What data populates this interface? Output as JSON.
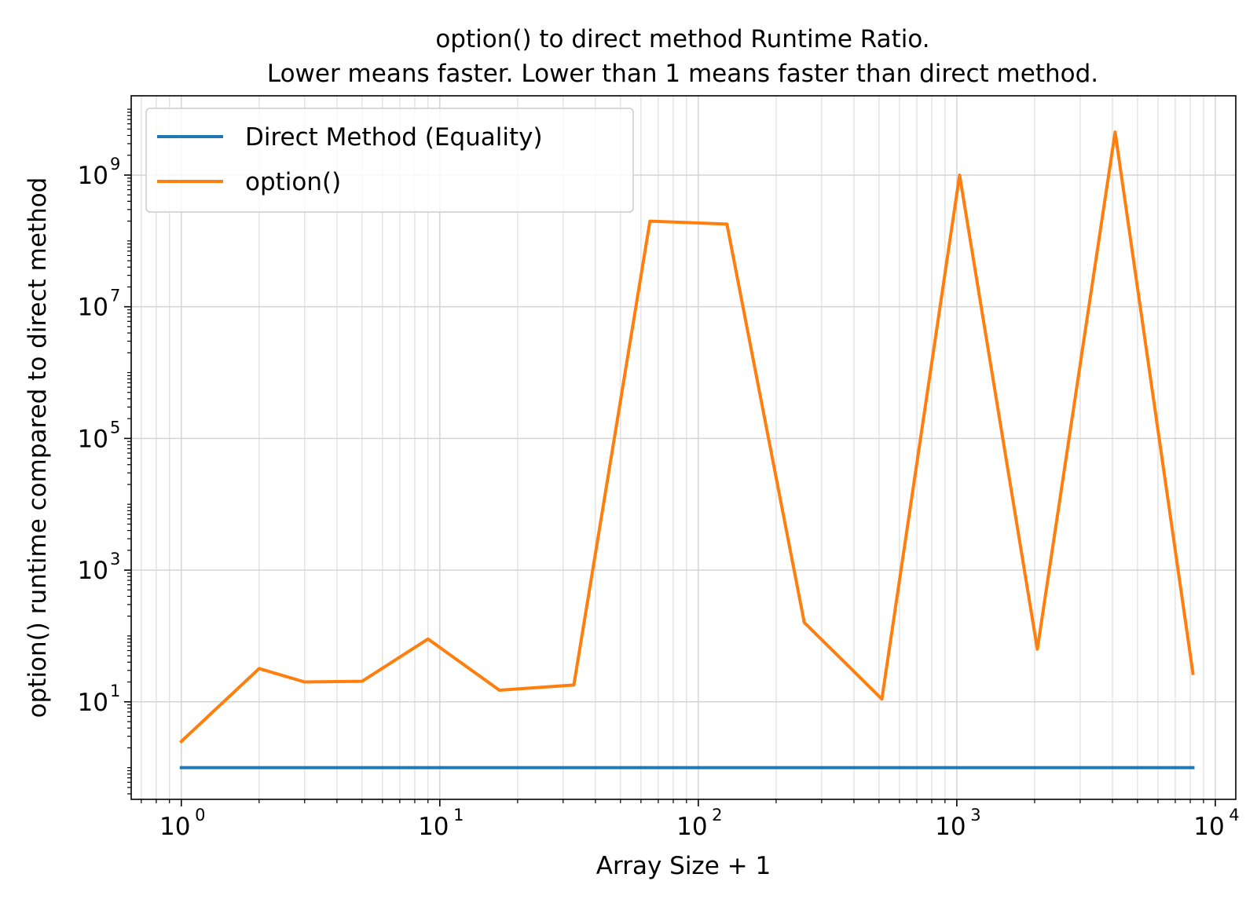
{
  "chart_data": {
    "type": "line",
    "title_line1": "option() to direct method Runtime Ratio.",
    "title_line2": "Lower means faster. Lower than 1 means faster than direct method.",
    "xlabel": "Array Size + 1",
    "ylabel": "option() runtime compared to direct method",
    "xscale": "log",
    "yscale": "log",
    "xlim": [
      0.64,
      12000
    ],
    "ylim": [
      0.33,
      16000000000
    ],
    "grid": "on (major and minor)",
    "legend_position": "upper left",
    "x_major_ticks": [
      1,
      10,
      100,
      1000,
      10000
    ],
    "x_tick_labels": [
      {
        "base": "10",
        "exp": "0"
      },
      {
        "base": "10",
        "exp": "1"
      },
      {
        "base": "10",
        "exp": "2"
      },
      {
        "base": "10",
        "exp": "3"
      },
      {
        "base": "10",
        "exp": "4"
      }
    ],
    "y_major_ticks": [
      10,
      1000,
      100000,
      10000000,
      1000000000
    ],
    "y_tick_labels": [
      {
        "base": "10",
        "exp": "1"
      },
      {
        "base": "10",
        "exp": "3"
      },
      {
        "base": "10",
        "exp": "5"
      },
      {
        "base": "10",
        "exp": "7"
      },
      {
        "base": "10",
        "exp": "9"
      }
    ],
    "x": [
      1,
      2,
      3,
      5,
      9,
      17,
      33,
      65,
      129,
      257,
      513,
      1025,
      2049,
      4097,
      8193
    ],
    "series": [
      {
        "name": "Direct Method (Equality)",
        "color": "#1f77b4",
        "values": [
          1,
          1,
          1,
          1,
          1,
          1,
          1,
          1,
          1,
          1,
          1,
          1,
          1,
          1,
          1
        ]
      },
      {
        "name": "option()",
        "color": "#ff7f0e",
        "values": [
          2.5,
          32,
          20,
          20.5,
          90,
          15,
          18,
          200000000,
          180000000,
          160,
          11,
          1000000000,
          63,
          4500000000,
          27
        ]
      }
    ]
  }
}
